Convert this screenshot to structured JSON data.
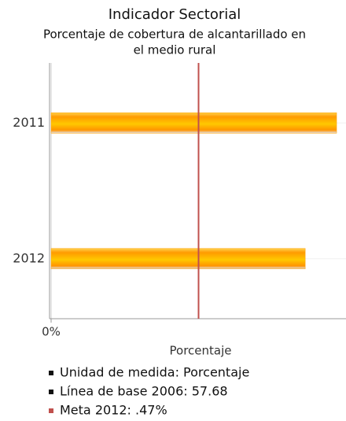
{
  "chart_data": {
    "type": "hbar",
    "title": "Indicador Sectorial",
    "subtitle": [
      "Porcentaje de cobertura de alcantarillado en",
      "el medio rural"
    ],
    "categories": [
      "2011",
      "2012"
    ],
    "values": [
      0.91,
      0.81
    ],
    "color": "#ffa000",
    "xlim": [
      0,
      0.94
    ],
    "xticks": [
      {
        "value": 0,
        "label": "0%"
      }
    ],
    "xlabel": "Porcentaje",
    "target": {
      "value": 0.47,
      "color": "#c0504d"
    },
    "legend": [
      {
        "text": "Unidad de medida: Porcentaje",
        "color": "#111111"
      },
      {
        "text": "Línea de base 2006: 57.68",
        "color": "#111111"
      },
      {
        "text": "Meta 2012: .47%",
        "color": "#c0504d"
      }
    ]
  }
}
